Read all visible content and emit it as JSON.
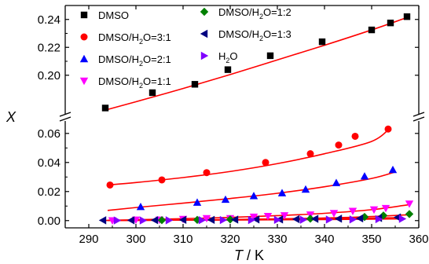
{
  "chart_data": {
    "type": "scatter",
    "xlabel": {
      "italic": "T",
      "rest": " / K"
    },
    "ylabel": "X",
    "xlim": [
      285,
      360
    ],
    "x_ticks": [
      "290",
      "300",
      "310",
      "320",
      "330",
      "340",
      "350",
      "360"
    ],
    "y_ticks_upper": [
      "0.20",
      "0.22",
      "0.24"
    ],
    "y_ticks_lower": [
      "0.00",
      "0.02",
      "0.04",
      "0.06"
    ],
    "y_axis_break": {
      "lower_range": [
        -0.005,
        0.068
      ],
      "upper_range": [
        0.17,
        0.25
      ]
    },
    "legend_position": "top-left",
    "series": [
      {
        "name": "DMSO",
        "marker": "square",
        "color": "#000000",
        "x": [
          293.5,
          303.5,
          312.5,
          319.5,
          328.5,
          339.5,
          350.0,
          354.0,
          357.5
        ],
        "y": [
          0.1765,
          0.1875,
          0.1935,
          0.204,
          0.214,
          0.224,
          0.2325,
          0.2375,
          0.242
        ],
        "fit": [
          [
            293.5,
            0.175
          ],
          [
            300,
            0.181
          ],
          [
            310,
            0.1905
          ],
          [
            320,
            0.2005
          ],
          [
            330,
            0.211
          ],
          [
            340,
            0.2215
          ],
          [
            350,
            0.2325
          ],
          [
            358,
            0.242
          ]
        ]
      },
      {
        "name_parts": [
          "DMSO/H",
          "2",
          "O=3:1"
        ],
        "marker": "circle",
        "color": "#ff0000",
        "x": [
          294.5,
          305.5,
          315.0,
          327.5,
          337.0,
          343.0,
          346.5,
          353.5
        ],
        "y": [
          0.0245,
          0.028,
          0.033,
          0.04,
          0.046,
          0.052,
          0.058,
          0.063
        ],
        "fit": [
          [
            294,
            0.0245
          ],
          [
            300,
            0.0262
          ],
          [
            310,
            0.0296
          ],
          [
            320,
            0.0338
          ],
          [
            330,
            0.0392
          ],
          [
            340,
            0.046
          ],
          [
            350,
            0.0545
          ],
          [
            354,
            0.064
          ]
        ]
      },
      {
        "name_parts": [
          "DMSO/H",
          "2",
          "O=2:1"
        ],
        "marker": "triangle-up",
        "color": "#0000ff",
        "x": [
          301.0,
          313.0,
          319.0,
          325.0,
          331.0,
          336.0,
          342.5,
          348.5,
          354.5
        ],
        "y": [
          0.0095,
          0.0125,
          0.0145,
          0.017,
          0.019,
          0.0215,
          0.026,
          0.0305,
          0.035
        ],
        "fit": [
          [
            294,
            0.007
          ],
          [
            300,
            0.009
          ],
          [
            310,
            0.012
          ],
          [
            320,
            0.0152
          ],
          [
            330,
            0.0188
          ],
          [
            340,
            0.0233
          ],
          [
            350,
            0.029
          ],
          [
            355,
            0.0335
          ]
        ]
      },
      {
        "name_parts": [
          "DMSO/H",
          "2",
          "O=1:1"
        ],
        "marker": "triangle-down",
        "color": "#ff00ff",
        "x": [
          295.0,
          300.0,
          305.0,
          310.0,
          315.0,
          320.0,
          325.0,
          328.0,
          331.5,
          337.0,
          342.0,
          346.0,
          350.5,
          353.0,
          358.0
        ],
        "y": [
          0.0,
          0.0005,
          0.0005,
          0.001,
          0.0015,
          0.0015,
          0.0025,
          0.003,
          0.0035,
          0.004,
          0.005,
          0.0065,
          0.0075,
          0.0085,
          0.0115
        ],
        "fit": [
          [
            294,
            0.0002
          ],
          [
            300,
            0.0006
          ],
          [
            310,
            0.0013
          ],
          [
            320,
            0.0022
          ],
          [
            330,
            0.0034
          ],
          [
            340,
            0.005
          ],
          [
            350,
            0.0075
          ],
          [
            358,
            0.011
          ]
        ]
      },
      {
        "name_parts": [
          "DMSO/H",
          "2",
          "O=1:2"
        ],
        "marker": "diamond",
        "color": "#008000",
        "x": [
          305.5,
          313.0,
          320.0,
          337.0,
          348.5,
          352.5,
          358.0
        ],
        "y": [
          0.0003,
          0.0005,
          0.0008,
          0.0013,
          0.0025,
          0.0035,
          0.0045
        ],
        "fit": [
          [
            294,
            0.0
          ],
          [
            310,
            0.0004
          ],
          [
            330,
            0.0012
          ],
          [
            345,
            0.0022
          ],
          [
            358,
            0.004
          ]
        ]
      },
      {
        "name_parts": [
          "DMSO/H",
          "2",
          "O=1:3"
        ],
        "marker": "triangle-left",
        "color": "#000080",
        "x": [
          293.0,
          299.0,
          304.0,
          310.0,
          316.0,
          321.0,
          325.5,
          330.5,
          334.0,
          338.0,
          343.0,
          347.5,
          351.5,
          355.5
        ],
        "y": [
          0.0002,
          0.0002,
          0.0003,
          0.0005,
          0.0005,
          0.0007,
          0.0008,
          0.0008,
          0.001,
          0.0012,
          0.0013,
          0.0015,
          0.0018,
          0.0022
        ],
        "fit": [
          [
            293,
            0.0001
          ],
          [
            310,
            0.0004
          ],
          [
            330,
            0.0009
          ],
          [
            345,
            0.0014
          ],
          [
            356,
            0.0021
          ]
        ]
      },
      {
        "name_parts": [
          "H",
          "2",
          "O"
        ],
        "marker": "triangle-right",
        "color": "#8000ff",
        "x": [
          296.0,
          301.5,
          307.0,
          314.0,
          318.5,
          324.5,
          330.0,
          335.5,
          341.0,
          346.0,
          351.5,
          356.5
        ],
        "y": [
          0.0001,
          0.0001,
          0.0002,
          0.0003,
          0.0004,
          0.0004,
          0.0005,
          0.0006,
          0.0007,
          0.0008,
          0.001,
          0.0012
        ],
        "fit": [
          [
            294,
            0.0001
          ],
          [
            320,
            0.0004
          ],
          [
            340,
            0.0007
          ],
          [
            357,
            0.0012
          ]
        ]
      }
    ]
  }
}
